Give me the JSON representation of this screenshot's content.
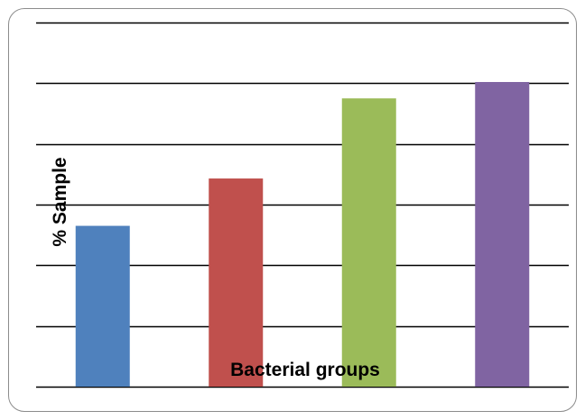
{
  "chart_data": {
    "type": "bar",
    "categories": [
      "",
      "",
      "",
      ""
    ],
    "values": [
      26.5,
      34.3,
      47.5,
      50.2
    ],
    "colors": [
      "#4f81bd",
      "#c0504d",
      "#9bbb59",
      "#8064a2"
    ],
    "title": "",
    "xlabel": "Bacterial groups",
    "ylabel": "% Sample",
    "ylim": [
      0,
      60
    ],
    "grid": true,
    "gridline_color": "#000000",
    "legend": "none"
  }
}
